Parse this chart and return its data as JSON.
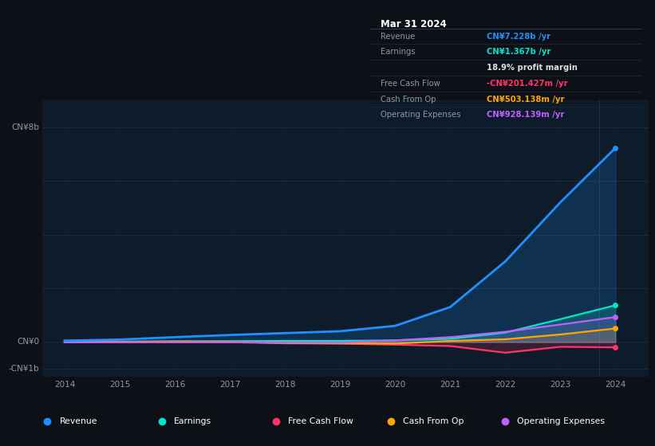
{
  "background_color": "#0d1117",
  "plot_bg_color": "#0d1b2a",
  "grid_color": "#1e2a3a",
  "years": [
    2014,
    2015,
    2016,
    2017,
    2018,
    2019,
    2020,
    2021,
    2022,
    2023,
    2024
  ],
  "revenue": [
    0.05,
    0.09,
    0.18,
    0.26,
    0.33,
    0.4,
    0.6,
    1.3,
    3.0,
    5.2,
    7.228
  ],
  "earnings": [
    0.01,
    0.01,
    0.02,
    0.03,
    0.04,
    0.04,
    0.06,
    0.12,
    0.35,
    0.85,
    1.367
  ],
  "free_cash": [
    -0.01,
    -0.01,
    -0.01,
    -0.01,
    -0.05,
    -0.06,
    -0.1,
    -0.15,
    -0.4,
    -0.18,
    -0.201
  ],
  "cash_from_op": [
    0.0,
    0.01,
    0.02,
    0.01,
    -0.04,
    -0.05,
    -0.06,
    0.04,
    0.1,
    0.28,
    0.503
  ],
  "op_expenses": [
    -0.01,
    -0.01,
    -0.01,
    -0.01,
    -0.02,
    -0.02,
    0.06,
    0.18,
    0.38,
    0.65,
    0.928
  ],
  "revenue_color": "#1e90ff",
  "earnings_color": "#00e5cc",
  "free_cash_color": "#ff3366",
  "cash_from_op_color": "#ffa500",
  "op_expenses_color": "#bf5fff",
  "ylim": [
    -1.3,
    9.0
  ],
  "ax_label_8b": "CN¥8b",
  "ax_label_0": "CN¥0",
  "ax_label_neg1b": "-CN¥1b",
  "info_box": {
    "title": "Mar 31 2024",
    "rows": [
      {
        "label": "Revenue",
        "value": "CN¥7.228b /yr",
        "color": "#1e90ff"
      },
      {
        "label": "Earnings",
        "value": "CN¥1.367b /yr",
        "color": "#00e5cc"
      },
      {
        "label": "",
        "value": "18.9% profit margin",
        "color": "#dddddd"
      },
      {
        "label": "Free Cash Flow",
        "value": "-CN¥201.427m /yr",
        "color": "#ff3366"
      },
      {
        "label": "Cash From Op",
        "value": "CN¥503.138m /yr",
        "color": "#ffa500"
      },
      {
        "label": "Operating Expenses",
        "value": "CN¥928.139m /yr",
        "color": "#bf5fff"
      }
    ]
  },
  "legend": [
    {
      "label": "Revenue",
      "color": "#1e90ff"
    },
    {
      "label": "Earnings",
      "color": "#00e5cc"
    },
    {
      "label": "Free Cash Flow",
      "color": "#ff3366"
    },
    {
      "label": "Cash From Op",
      "color": "#ffa500"
    },
    {
      "label": "Operating Expenses",
      "color": "#bf5fff"
    }
  ]
}
